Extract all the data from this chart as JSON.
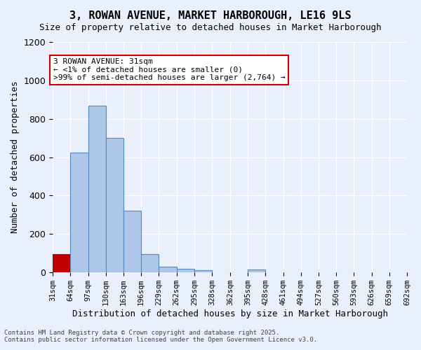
{
  "title1": "3, ROWAN AVENUE, MARKET HARBOROUGH, LE16 9LS",
  "title2": "Size of property relative to detached houses in Market Harborough",
  "xlabel": "Distribution of detached houses by size in Market Harborough",
  "ylabel": "Number of detached properties",
  "bin_edges": [
    31,
    64,
    97,
    130,
    163,
    196,
    229,
    262,
    295,
    328,
    362,
    395,
    428,
    461,
    494,
    527,
    560,
    593,
    626,
    659,
    692
  ],
  "bin_labels": [
    "31sqm",
    "64sqm",
    "97sqm",
    "130sqm",
    "163sqm",
    "196sqm",
    "229sqm",
    "262sqm",
    "295sqm",
    "328sqm",
    "362sqm",
    "395sqm",
    "428sqm",
    "461sqm",
    "494sqm",
    "527sqm",
    "560sqm",
    "593sqm",
    "626sqm",
    "659sqm",
    "692sqm"
  ],
  "bar_heights": [
    95,
    625,
    870,
    700,
    320,
    95,
    30,
    20,
    10,
    0,
    0,
    15,
    0,
    0,
    0,
    0,
    0,
    0,
    0,
    0
  ],
  "highlight_bin": 0,
  "highlight_color": "#c00000",
  "bar_color": "#aec6e8",
  "bar_edge_color": "#5588bb",
  "background_color": "#eaf0fb",
  "annotation_text": "3 ROWAN AVENUE: 31sqm\n← <1% of detached houses are smaller (0)\n>99% of semi-detached houses are larger (2,764) →",
  "annotation_box_color": "#ffffff",
  "annotation_box_edge": "#cc0000",
  "ylim": [
    0,
    1200
  ],
  "yticks": [
    0,
    200,
    400,
    600,
    800,
    1000,
    1200
  ],
  "footer": "Contains HM Land Registry data © Crown copyright and database right 2025.\nContains public sector information licensed under the Open Government Licence v3.0.",
  "figsize": [
    6.0,
    5.0
  ],
  "dpi": 100
}
